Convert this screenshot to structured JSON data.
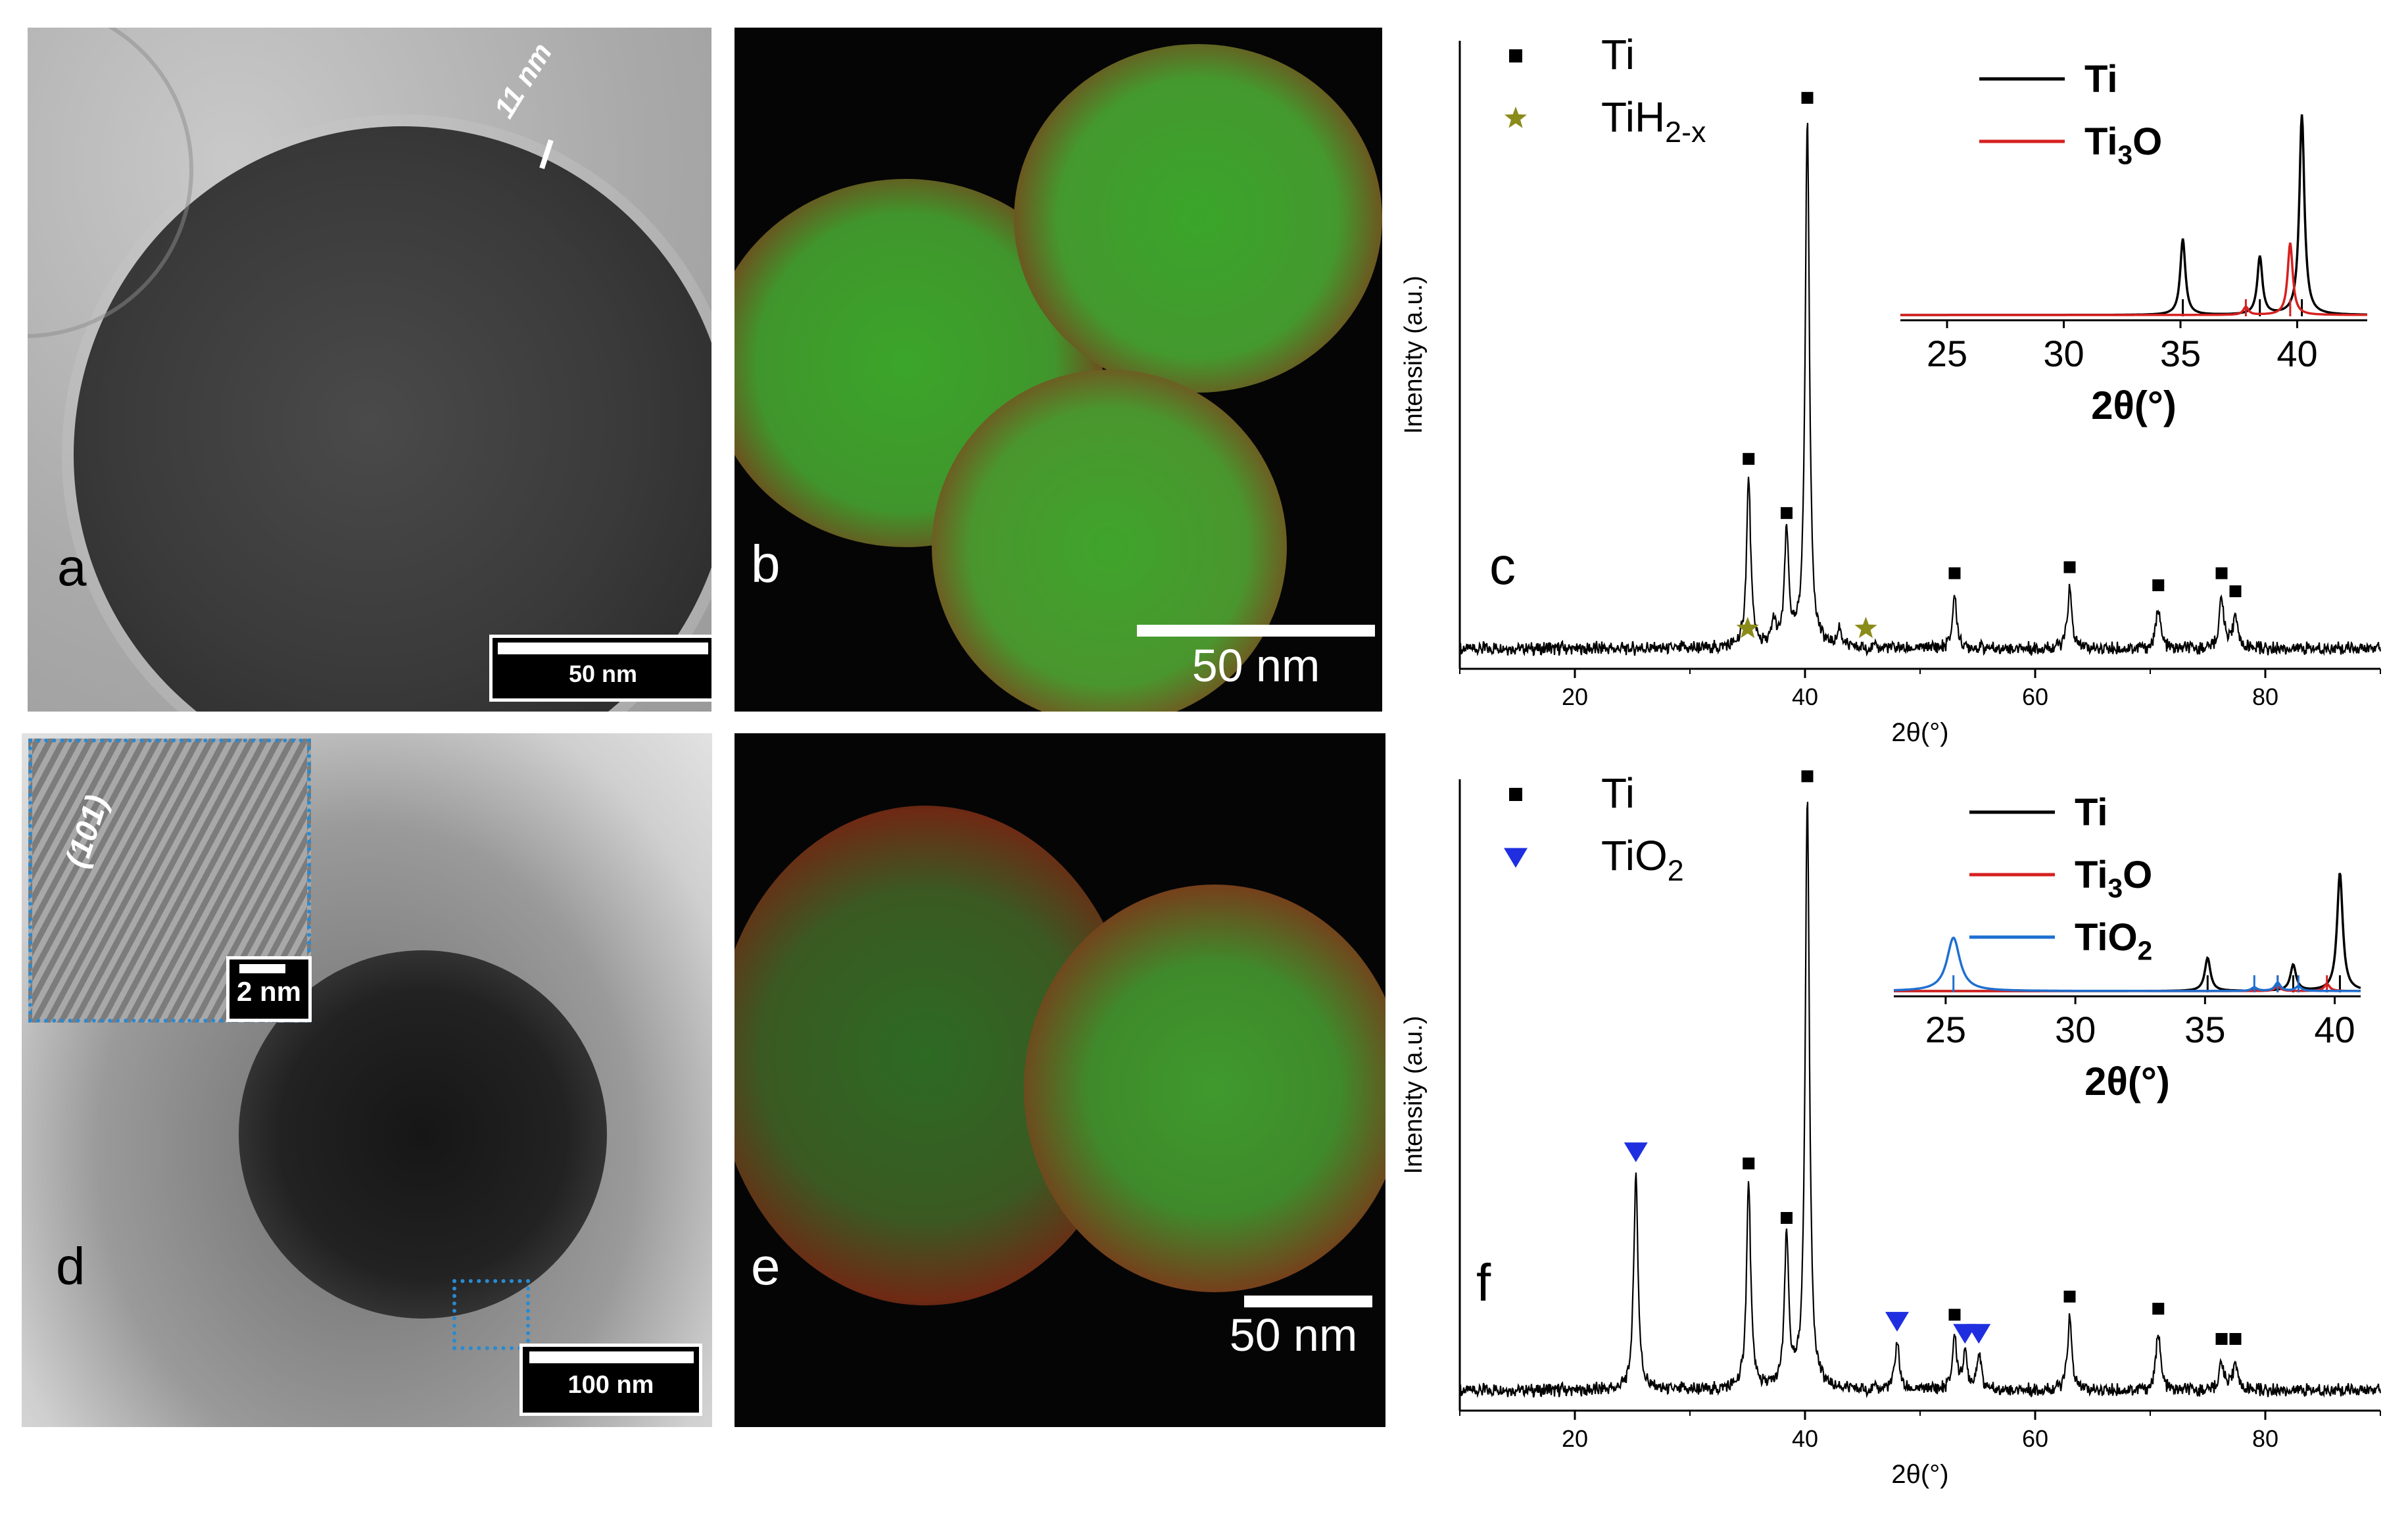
{
  "figure": {
    "panel_a": {
      "letter": "a",
      "scale_bar": "50 nm",
      "shell_annotation": "11 nm"
    },
    "panel_b": {
      "letter": "b",
      "scale_bar": "50 nm"
    },
    "panel_d": {
      "letter": "d",
      "scale_bar": "100 nm",
      "inset_scale_bar": "2 nm",
      "lattice_plane": "(101)"
    },
    "panel_e": {
      "letter": "e",
      "scale_bar": "50 nm"
    },
    "panel_c": {
      "letter": "c"
    },
    "panel_f": {
      "letter": "f"
    }
  },
  "chart_data": [
    {
      "panel": "c",
      "type": "line",
      "xlabel": "2θ(°)",
      "ylabel": "Intensity (a.u.)",
      "xlim": [
        10,
        90
      ],
      "xticks": [
        "20",
        "40",
        "60",
        "80"
      ],
      "legend": [
        {
          "name": "Ti",
          "marker": "square",
          "color": "#000000"
        },
        {
          "name": "TiH2-x",
          "marker": "star",
          "color": "#8b8b1a"
        }
      ],
      "peaks": [
        {
          "x": 35.1,
          "y": 0.28,
          "phase": "Ti"
        },
        {
          "x": 37.3,
          "y": 0.04,
          "phase": "TiH2-x"
        },
        {
          "x": 38.4,
          "y": 0.19,
          "phase": "Ti"
        },
        {
          "x": 40.2,
          "y": 0.88,
          "phase": "Ti"
        },
        {
          "x": 43.0,
          "y": 0.03,
          "phase": "TiH2-x"
        },
        {
          "x": 53.0,
          "y": 0.09,
          "phase": "Ti"
        },
        {
          "x": 63.0,
          "y": 0.1,
          "phase": "Ti"
        },
        {
          "x": 70.7,
          "y": 0.07,
          "phase": "Ti"
        },
        {
          "x": 76.2,
          "y": 0.09,
          "phase": "Ti"
        },
        {
          "x": 77.4,
          "y": 0.06,
          "phase": "Ti"
        }
      ],
      "inset": {
        "xlabel": "2θ(°)",
        "xlim": [
          23,
          43
        ],
        "xticks": [
          "25",
          "30",
          "35",
          "40"
        ],
        "series": [
          {
            "name": "Ti",
            "color": "#000000",
            "peaks": [
              {
                "x": 35.1,
                "y": 0.38
              },
              {
                "x": 38.4,
                "y": 0.29
              },
              {
                "x": 40.2,
                "y": 1.0
              }
            ]
          },
          {
            "name": "Ti3O",
            "color": "#d62020",
            "peaks": [
              {
                "x": 37.8,
                "y": 0.04
              },
              {
                "x": 39.7,
                "y": 0.36
              }
            ]
          }
        ]
      }
    },
    {
      "panel": "f",
      "type": "line",
      "xlabel": "2θ(°)",
      "ylabel": "Intensity (a.u.)",
      "xlim": [
        10,
        90
      ],
      "xticks": [
        "20",
        "40",
        "60",
        "80"
      ],
      "legend": [
        {
          "name": "Ti",
          "marker": "square",
          "color": "#000000"
        },
        {
          "name": "TiO2",
          "marker": "triangle-down",
          "color": "#1f2fe0"
        }
      ],
      "peaks": [
        {
          "x": 25.3,
          "y": 0.36,
          "phase": "TiO2"
        },
        {
          "x": 35.1,
          "y": 0.34,
          "phase": "Ti"
        },
        {
          "x": 38.4,
          "y": 0.25,
          "phase": "Ti"
        },
        {
          "x": 40.2,
          "y": 0.98,
          "phase": "Ti"
        },
        {
          "x": 48.0,
          "y": 0.08,
          "phase": "TiO2"
        },
        {
          "x": 53.0,
          "y": 0.09,
          "phase": "Ti"
        },
        {
          "x": 53.9,
          "y": 0.06,
          "phase": "TiO2"
        },
        {
          "x": 55.1,
          "y": 0.06,
          "phase": "TiO2"
        },
        {
          "x": 63.0,
          "y": 0.12,
          "phase": "Ti"
        },
        {
          "x": 70.7,
          "y": 0.1,
          "phase": "Ti"
        },
        {
          "x": 76.2,
          "y": 0.05,
          "phase": "Ti"
        },
        {
          "x": 77.4,
          "y": 0.05,
          "phase": "Ti"
        }
      ],
      "inset": {
        "xlabel": "2θ(°)",
        "xlim": [
          23,
          41
        ],
        "xticks": [
          "25",
          "30",
          "35",
          "40"
        ],
        "series": [
          {
            "name": "Ti",
            "color": "#000000",
            "peaks": [
              {
                "x": 35.1,
                "y": 0.28
              },
              {
                "x": 38.4,
                "y": 0.22
              },
              {
                "x": 40.2,
                "y": 1.0
              }
            ]
          },
          {
            "name": "Ti3O",
            "color": "#d62020",
            "peaks": [
              {
                "x": 37.8,
                "y": 0.04
              },
              {
                "x": 39.7,
                "y": 0.06
              }
            ]
          },
          {
            "name": "TiO2",
            "color": "#1f6fd0",
            "peaks": [
              {
                "x": 25.3,
                "y": 0.45
              },
              {
                "x": 36.9,
                "y": 0.03
              },
              {
                "x": 37.8,
                "y": 0.07
              },
              {
                "x": 38.6,
                "y": 0.04
              }
            ]
          }
        ]
      }
    }
  ]
}
